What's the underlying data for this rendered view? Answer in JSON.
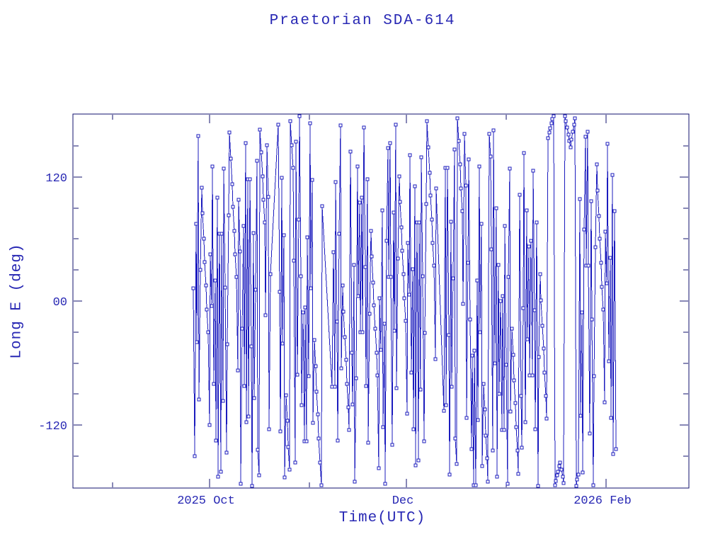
{
  "chart_data": {
    "type": "line",
    "title": "Praetorian SDA-614",
    "xlabel": "Time(UTC)",
    "ylabel": "Long E (deg)",
    "marker": "open-square",
    "grid": false,
    "legend": "none",
    "x_unit": "days since 2025-09-01 00:00 UTC (axis labeled by month)",
    "x_range_days": [
      -12.4,
      178.6
    ],
    "y_range_deg": [
      -181,
      181
    ],
    "x_ticks": [
      {
        "t": 0,
        "major": false,
        "label": ""
      },
      {
        "t": 30,
        "major": true,
        "label": "2025 Oct"
      },
      {
        "t": 61,
        "major": false,
        "label": ""
      },
      {
        "t": 91,
        "major": true,
        "label": "Dec"
      },
      {
        "t": 122,
        "major": false,
        "label": ""
      },
      {
        "t": 153,
        "major": true,
        "label": "2026 Feb"
      }
    ],
    "y_ticks_major": [
      {
        "v": 120,
        "label": "120"
      },
      {
        "v": 0,
        "label": "00"
      },
      {
        "v": -120,
        "label": "-120"
      }
    ],
    "y_ticks_minor": [
      150,
      90,
      60,
      30,
      -30,
      -60,
      -90,
      -150
    ],
    "colors": {
      "data": "#1c1cbe",
      "frame": "#10106e",
      "text": "#2828b4",
      "background": "#ffffff"
    },
    "points_t_lon": [
      [
        25,
        12
      ],
      [
        25.35,
        -150
      ],
      [
        25.7,
        75
      ],
      [
        26.05,
        -40
      ],
      [
        26.4,
        160
      ],
      [
        26.75,
        -95
      ],
      [
        27.1,
        30
      ],
      [
        27.45,
        110
      ],
      [
        27.8,
        85
      ],
      [
        28.15,
        60
      ],
      [
        28.5,
        38
      ],
      [
        28.85,
        15
      ],
      [
        29.2,
        -8
      ],
      [
        29.55,
        -30
      ],
      [
        29.9,
        -120
      ],
      [
        30.25,
        45
      ],
      [
        30.6,
        -5
      ],
      [
        30.95,
        130
      ],
      [
        31.3,
        -80
      ],
      [
        31.65,
        20
      ],
      [
        32,
        -135
      ],
      [
        32.35,
        100
      ],
      [
        32.7,
        -170
      ],
      [
        33.05,
        65
      ],
      [
        33.4,
        -165
      ],
      [
        33.75,
        65
      ],
      [
        34.1,
        -97
      ],
      [
        34.45,
        128
      ],
      [
        34.8,
        13
      ],
      [
        35.15,
        -147
      ],
      [
        35.5,
        -42
      ],
      [
        35.85,
        83
      ],
      [
        36.2,
        163
      ],
      [
        36.55,
        138
      ],
      [
        36.9,
        113
      ],
      [
        37.25,
        91
      ],
      [
        37.6,
        68
      ],
      [
        37.95,
        45
      ],
      [
        38.3,
        23
      ],
      [
        38.65,
        -67
      ],
      [
        39,
        98
      ],
      [
        39.35,
        48
      ],
      [
        39.7,
        -177
      ],
      [
        40.05,
        -27
      ],
      [
        40.4,
        73
      ],
      [
        40.75,
        -82
      ],
      [
        41.1,
        153
      ],
      [
        41.45,
        -117
      ],
      [
        41.8,
        118
      ],
      [
        42.15,
        -112
      ],
      [
        42.5,
        118
      ],
      [
        42.85,
        -44
      ],
      [
        43.2,
        -179
      ],
      [
        43.55,
        66
      ],
      [
        43.9,
        -94
      ],
      [
        44.25,
        11
      ],
      [
        44.6,
        136
      ],
      [
        44.95,
        -144
      ],
      [
        45.3,
        -169
      ],
      [
        45.65,
        166
      ],
      [
        46,
        144
      ],
      [
        46.35,
        121
      ],
      [
        46.7,
        98
      ],
      [
        47.05,
        76
      ],
      [
        47.4,
        -14
      ],
      [
        47.75,
        151
      ],
      [
        48.1,
        101
      ],
      [
        48.45,
        -124
      ],
      [
        48.8,
        26
      ],
      [
        51.25,
        171
      ],
      [
        51.6,
        9
      ],
      [
        51.95,
        -126
      ],
      [
        52.3,
        119
      ],
      [
        52.65,
        -41
      ],
      [
        53,
        64
      ],
      [
        53.35,
        -171
      ],
      [
        53.7,
        -91
      ],
      [
        54.05,
        -116
      ],
      [
        54.4,
        -141
      ],
      [
        54.75,
        -163
      ],
      [
        55.1,
        174
      ],
      [
        55.45,
        151
      ],
      [
        55.8,
        129
      ],
      [
        56.15,
        39
      ],
      [
        56.5,
        -156
      ],
      [
        56.85,
        154
      ],
      [
        57.2,
        -71
      ],
      [
        57.55,
        79
      ],
      [
        57.9,
        179
      ],
      [
        58.25,
        24
      ],
      [
        58.6,
        -101
      ],
      [
        58.95,
        -11
      ],
      [
        59.3,
        -136
      ],
      [
        59.65,
        -6
      ],
      [
        60,
        -136
      ],
      [
        60.35,
        62
      ],
      [
        60.7,
        -73
      ],
      [
        61.05,
        172
      ],
      [
        61.4,
        12
      ],
      [
        61.75,
        117
      ],
      [
        62.1,
        -118
      ],
      [
        62.45,
        -38
      ],
      [
        62.8,
        -63
      ],
      [
        63.15,
        -88
      ],
      [
        63.5,
        -110
      ],
      [
        63.85,
        -133
      ],
      [
        64.2,
        -156
      ],
      [
        64.55,
        -178
      ],
      [
        64.9,
        92
      ],
      [
        68.05,
        -83
      ],
      [
        68.4,
        47
      ],
      [
        68.75,
        -83
      ],
      [
        69.1,
        115
      ],
      [
        69.45,
        -20
      ],
      [
        69.8,
        -135
      ],
      [
        70.15,
        65
      ],
      [
        70.5,
        170
      ],
      [
        70.85,
        -65
      ],
      [
        71.2,
        15
      ],
      [
        71.55,
        -10
      ],
      [
        71.9,
        -35
      ],
      [
        72.25,
        -57
      ],
      [
        72.6,
        -80
      ],
      [
        72.95,
        -103
      ],
      [
        73.3,
        -125
      ],
      [
        73.65,
        145
      ],
      [
        74,
        -50
      ],
      [
        74.35,
        -100
      ],
      [
        74.7,
        35
      ],
      [
        75.05,
        -175
      ],
      [
        75.4,
        -75
      ],
      [
        75.75,
        130
      ],
      [
        76.1,
        5
      ],
      [
        76.45,
        95
      ],
      [
        76.8,
        -30
      ],
      [
        77.15,
        100
      ],
      [
        77.5,
        -30
      ],
      [
        77.85,
        168
      ],
      [
        78.2,
        33
      ],
      [
        78.55,
        -82
      ],
      [
        78.9,
        118
      ],
      [
        79.25,
        -137
      ],
      [
        79.6,
        -12
      ],
      [
        79.95,
        68
      ],
      [
        80.3,
        43
      ],
      [
        80.65,
        18
      ],
      [
        81,
        -4
      ],
      [
        81.35,
        -27
      ],
      [
        81.7,
        -50
      ],
      [
        82.05,
        -72
      ],
      [
        82.4,
        -162
      ],
      [
        82.75,
        3
      ],
      [
        83.1,
        -47
      ],
      [
        83.45,
        88
      ],
      [
        83.8,
        -122
      ],
      [
        84.15,
        -22
      ],
      [
        84.5,
        -177
      ],
      [
        84.85,
        58
      ],
      [
        85.2,
        148
      ],
      [
        85.55,
        23
      ],
      [
        85.9,
        153
      ],
      [
        86.25,
        23
      ],
      [
        86.6,
        -139
      ],
      [
        86.95,
        86
      ],
      [
        87.3,
        -29
      ],
      [
        87.65,
        171
      ],
      [
        88,
        -84
      ],
      [
        88.35,
        41
      ],
      [
        88.7,
        121
      ],
      [
        89.05,
        96
      ],
      [
        89.4,
        71
      ],
      [
        89.75,
        49
      ],
      [
        90.1,
        26
      ],
      [
        90.45,
        3
      ],
      [
        90.8,
        -19
      ],
      [
        91.15,
        -109
      ],
      [
        91.5,
        56
      ],
      [
        91.85,
        6
      ],
      [
        92.2,
        141
      ],
      [
        92.55,
        -69
      ],
      [
        92.9,
        31
      ],
      [
        93.25,
        -124
      ],
      [
        93.6,
        111
      ],
      [
        93.95,
        -159
      ],
      [
        94.3,
        76
      ],
      [
        94.65,
        -154
      ],
      [
        95,
        76
      ],
      [
        95.35,
        -86
      ],
      [
        95.7,
        139
      ],
      [
        96.05,
        24
      ],
      [
        96.4,
        -136
      ],
      [
        96.75,
        -31
      ],
      [
        97.1,
        94
      ],
      [
        97.45,
        174
      ],
      [
        97.8,
        149
      ],
      [
        98.15,
        124
      ],
      [
        98.5,
        102
      ],
      [
        98.85,
        79
      ],
      [
        99.2,
        56
      ],
      [
        99.55,
        34
      ],
      [
        99.9,
        -56
      ],
      [
        100.25,
        109
      ],
      [
        102.7,
        -106
      ],
      [
        103.05,
        129
      ],
      [
        103.4,
        -101
      ],
      [
        103.75,
        129
      ],
      [
        104.1,
        -33
      ],
      [
        104.45,
        -168
      ],
      [
        104.8,
        77
      ],
      [
        105.15,
        -83
      ],
      [
        105.5,
        22
      ],
      [
        105.85,
        147
      ],
      [
        106.2,
        -133
      ],
      [
        106.55,
        -158
      ],
      [
        106.9,
        177
      ],
      [
        107.25,
        155
      ],
      [
        107.6,
        132
      ],
      [
        107.95,
        109
      ],
      [
        108.3,
        87
      ],
      [
        108.65,
        -3
      ],
      [
        109,
        162
      ],
      [
        109.35,
        112
      ],
      [
        109.7,
        -113
      ],
      [
        110.05,
        37
      ],
      [
        110.4,
        137
      ],
      [
        110.75,
        -18
      ],
      [
        111.1,
        -143
      ],
      [
        111.45,
        -53
      ],
      [
        111.8,
        -178
      ],
      [
        112.15,
        -48
      ],
      [
        112.5,
        -178
      ],
      [
        112.85,
        20
      ],
      [
        113.2,
        -115
      ],
      [
        113.55,
        130
      ],
      [
        113.9,
        -30
      ],
      [
        114.25,
        75
      ],
      [
        114.6,
        -160
      ],
      [
        114.95,
        -80
      ],
      [
        115.3,
        -105
      ],
      [
        115.65,
        -130
      ],
      [
        116,
        -152
      ],
      [
        116.35,
        -175
      ],
      [
        116.7,
        162
      ],
      [
        117.05,
        140
      ],
      [
        117.4,
        50
      ],
      [
        117.75,
        -145
      ],
      [
        118.1,
        165
      ],
      [
        118.45,
        -60
      ],
      [
        118.8,
        90
      ],
      [
        119.15,
        -170
      ],
      [
        119.5,
        35
      ],
      [
        119.85,
        -90
      ],
      [
        120.2,
        0
      ],
      [
        120.55,
        -125
      ],
      [
        120.9,
        5
      ],
      [
        121.25,
        -125
      ],
      [
        121.6,
        73
      ],
      [
        121.95,
        -62
      ],
      [
        122.3,
        -177
      ],
      [
        122.65,
        23
      ],
      [
        123,
        128
      ],
      [
        123.35,
        -107
      ],
      [
        123.7,
        -27
      ],
      [
        124.05,
        -52
      ],
      [
        124.4,
        -77
      ],
      [
        124.75,
        -99
      ],
      [
        125.1,
        -122
      ],
      [
        125.45,
        -145
      ],
      [
        125.8,
        -167
      ],
      [
        126.15,
        103
      ],
      [
        126.5,
        -92
      ],
      [
        126.85,
        -142
      ],
      [
        127.2,
        -7
      ],
      [
        127.55,
        143
      ],
      [
        127.9,
        -117
      ],
      [
        128.25,
        88
      ],
      [
        128.6,
        -37
      ],
      [
        128.95,
        53
      ],
      [
        129.3,
        -72
      ],
      [
        129.65,
        58
      ],
      [
        130,
        -72
      ],
      [
        130.35,
        126
      ],
      [
        130.7,
        -9
      ],
      [
        131.05,
        -124
      ],
      [
        131.4,
        76
      ],
      [
        131.75,
        -179
      ],
      [
        132.1,
        -54
      ],
      [
        132.45,
        26
      ],
      [
        132.8,
        1
      ],
      [
        133.15,
        -24
      ],
      [
        133.5,
        -46
      ],
      [
        133.85,
        -69
      ],
      [
        134.2,
        -92
      ],
      [
        134.55,
        -114
      ],
      [
        134.9,
        158
      ],
      [
        135.25,
        163
      ],
      [
        135.6,
        167
      ],
      [
        135.95,
        172
      ],
      [
        136.3,
        176
      ],
      [
        136.65,
        179
      ],
      [
        137,
        -178
      ],
      [
        137.35,
        -174
      ],
      [
        137.7,
        -169
      ],
      [
        138.05,
        -165
      ],
      [
        138.4,
        -160
      ],
      [
        138.75,
        -156
      ],
      [
        139.1,
        -163
      ],
      [
        139.45,
        -170
      ],
      [
        139.8,
        -176
      ],
      [
        140.15,
        179
      ],
      [
        140.5,
        174
      ],
      [
        140.85,
        168
      ],
      [
        141.2,
        161
      ],
      [
        141.55,
        155
      ],
      [
        141.9,
        149
      ],
      [
        142.25,
        156
      ],
      [
        142.6,
        164
      ],
      [
        142.95,
        171
      ],
      [
        143.3,
        177
      ],
      [
        143.65,
        -179
      ],
      [
        144,
        -173
      ],
      [
        144.35,
        -168
      ],
      [
        144.7,
        99
      ],
      [
        145.05,
        -111
      ],
      [
        145.4,
        -11
      ],
      [
        145.75,
        -166
      ],
      [
        146.1,
        69
      ],
      [
        146.45,
        159
      ],
      [
        146.8,
        34
      ],
      [
        147.15,
        164
      ],
      [
        147.5,
        34
      ],
      [
        147.85,
        -128
      ],
      [
        148.2,
        97
      ],
      [
        148.55,
        -18
      ],
      [
        148.9,
        -178
      ],
      [
        149.25,
        -73
      ],
      [
        149.6,
        52
      ],
      [
        149.95,
        132
      ],
      [
        150.3,
        107
      ],
      [
        150.65,
        82
      ],
      [
        151,
        60
      ],
      [
        151.35,
        37
      ],
      [
        151.7,
        14
      ],
      [
        152.05,
        -8
      ],
      [
        152.4,
        -98
      ],
      [
        152.75,
        67
      ],
      [
        153.1,
        17
      ],
      [
        153.45,
        152
      ],
      [
        153.8,
        -58
      ],
      [
        154.15,
        42
      ],
      [
        154.5,
        -113
      ],
      [
        154.85,
        122
      ],
      [
        155.2,
        -148
      ],
      [
        155.55,
        87
      ],
      [
        155.9,
        -143
      ]
    ]
  }
}
